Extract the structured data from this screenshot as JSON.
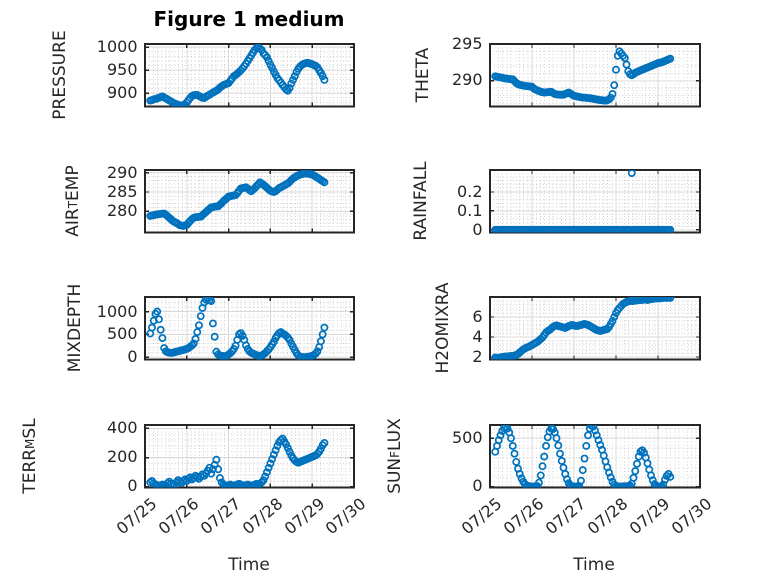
{
  "figure": {
    "title": "Figure 1 medium",
    "xlabel": "Time",
    "background_color": "#ffffff",
    "marker_color": "#0072BD",
    "axes_edge_color": "#262626",
    "grid_major_color": "#d9d9d9",
    "grid_minor_color": "#cfcfcf",
    "xlim": [
      25,
      30
    ],
    "xticks": [
      25,
      26,
      27,
      28,
      29,
      30
    ],
    "xticklabels": [
      "07/25",
      "07/26",
      "07/27",
      "07/28",
      "07/29",
      "07/30"
    ]
  },
  "chart_data": [
    {
      "id": "pressure",
      "name": "PRESSURE",
      "type": "scatter",
      "row": 0,
      "col": 0,
      "ylabel_parts": [
        {
          "t": "PRESSURE"
        }
      ],
      "yticks": [
        900,
        950,
        1000
      ],
      "yticklabels": [
        "900",
        "950",
        "1000"
      ],
      "ylim": [
        871,
        1007
      ],
      "yminor": 10,
      "x0": 25.125,
      "dx": 0.041666667,
      "values": [
        884,
        885,
        886.5,
        887.5,
        888.7,
        890,
        891.5,
        893,
        890.5,
        888.5,
        886.5,
        884,
        882,
        879.5,
        877.5,
        876,
        874.5,
        873.5,
        873.5,
        874,
        875.5,
        880,
        885,
        890,
        894,
        895.5,
        896,
        896,
        894,
        892,
        890,
        889.5,
        892,
        894.5,
        896.5,
        899,
        901,
        903.5,
        905.5,
        908.5,
        912,
        915,
        917.5,
        919,
        920.5,
        922,
        927,
        932,
        937,
        939.5,
        942.5,
        946,
        949.5,
        954,
        959,
        964,
        970,
        976,
        982,
        988,
        994,
        998,
        1000,
        997,
        994,
        987,
        983,
        978,
        970,
        962,
        955,
        947,
        940,
        933,
        928,
        923,
        918,
        913,
        908.5,
        905.5,
        911,
        921,
        929,
        937,
        946,
        953,
        958,
        961,
        963.5,
        965,
        966,
        965.5,
        964,
        963,
        961,
        959.5,
        956,
        950,
        944,
        937,
        929
      ]
    },
    {
      "id": "theta",
      "name": "THETA",
      "type": "scatter",
      "row": 0,
      "col": 1,
      "ylabel_parts": [
        {
          "t": "THETA"
        }
      ],
      "yticks": [
        290,
        295
      ],
      "yticklabels": [
        "290",
        "295"
      ],
      "ylim": [
        286.5,
        295
      ],
      "yminor": 1,
      "x0": 25.125,
      "dx": 0.041666667,
      "values": [
        290.6,
        290.55,
        290.5,
        290.45,
        290.4,
        290.35,
        290.3,
        290.28,
        290.25,
        290.22,
        290.2,
        289.95,
        289.7,
        289.55,
        289.45,
        289.4,
        289.35,
        289.3,
        289.28,
        289.25,
        289.22,
        289.2,
        288.95,
        288.8,
        288.7,
        288.6,
        288.5,
        288.45,
        288.4,
        288.42,
        288.45,
        288.48,
        288.5,
        288.35,
        288.2,
        288.15,
        288.12,
        288.1,
        288.1,
        288.1,
        288.2,
        288.3,
        288.4,
        288.25,
        288.1,
        287.95,
        287.9,
        287.85,
        287.8,
        287.75,
        287.72,
        287.7,
        287.68,
        287.65,
        287.62,
        287.6,
        287.55,
        287.5,
        287.45,
        287.4,
        287.38,
        287.35,
        287.32,
        287.3,
        287.35,
        287.45,
        287.7,
        288.2,
        289.4,
        291.5,
        293.4,
        294,
        293.7,
        293.4,
        293.1,
        292.2,
        291.3,
        290.9,
        290.75,
        290.9,
        291.1,
        291.2,
        291.3,
        291.4,
        291.5,
        291.6,
        291.7,
        291.8,
        291.9,
        292,
        292.1,
        292.2,
        292.3,
        292.4,
        292.45,
        292.5,
        292.6,
        292.7,
        292.8,
        292.9,
        293
      ]
    },
    {
      "id": "air-temp",
      "name": "AIR_TEMP",
      "type": "scatter",
      "row": 1,
      "col": 0,
      "ylabel_parts": [
        {
          "t": "AIR"
        },
        {
          "t": "T",
          "sub": true
        },
        {
          "t": "EMP"
        }
      ],
      "yticks": [
        280,
        285,
        290
      ],
      "yticklabels": [
        "280",
        "285",
        "290"
      ],
      "ylim": [
        274.5,
        290.7
      ],
      "yminor": 1,
      "x0": 25.125,
      "dx": 0.041666667,
      "values": [
        278.8,
        278.9,
        279,
        279.1,
        279.2,
        279.25,
        279.3,
        279.38,
        279.4,
        279.1,
        278.7,
        278.3,
        277.9,
        277.5,
        277.2,
        277,
        276.7,
        276.4,
        276.3,
        276.2,
        276.35,
        276.5,
        277,
        277.5,
        278,
        278.3,
        278.45,
        278.5,
        278.55,
        278.6,
        279,
        279.4,
        279.8,
        280.2,
        280.6,
        281,
        281.1,
        281.2,
        281.25,
        281.3,
        281.7,
        282.1,
        282.6,
        283,
        283.4,
        283.8,
        283.9,
        284,
        284.1,
        284.2,
        284.7,
        285.3,
        285.9,
        286,
        286.1,
        286.2,
        285.9,
        285.5,
        285.2,
        285.6,
        286,
        286.5,
        287,
        287.5,
        287.2,
        286.9,
        286.5,
        286.1,
        285.7,
        285.3,
        285.15,
        285,
        285.2,
        285.6,
        286,
        286.2,
        286.5,
        286.7,
        287,
        287.2,
        287.6,
        288.1,
        288.5,
        288.8,
        289.1,
        289.3,
        289.5,
        289.6,
        289.7,
        289.8,
        289.75,
        289.7,
        289.6,
        289.5,
        289.3,
        289,
        288.7,
        288.4,
        288.1,
        287.8,
        287.5
      ]
    },
    {
      "id": "rainfall",
      "name": "RAINFALL",
      "type": "scatter",
      "row": 1,
      "col": 1,
      "ylabel_parts": [
        {
          "t": "RAINFALL"
        }
      ],
      "yticks": [
        0,
        0.1,
        0.2
      ],
      "yticklabels": [
        "0",
        "0.1",
        "0.2"
      ],
      "ylim": [
        -0.014,
        0.316
      ],
      "yminor": 0.02,
      "x0": 25.125,
      "dx": 0.041666667,
      "values": [
        0,
        0,
        0,
        0,
        0,
        0,
        0,
        0,
        0,
        0,
        0,
        0,
        0,
        0,
        0,
        0,
        0,
        0,
        0,
        0,
        0,
        0,
        0,
        0,
        0,
        0,
        0,
        0,
        0,
        0,
        0,
        0,
        0,
        0,
        0,
        0,
        0,
        0,
        0,
        0,
        0,
        0,
        0,
        0,
        0,
        0,
        0,
        0,
        0,
        0,
        0,
        0,
        0,
        0,
        0,
        0,
        0,
        0,
        0,
        0,
        0,
        0,
        0,
        0,
        0,
        0,
        0,
        0,
        0,
        0,
        0,
        0,
        0,
        0,
        0,
        0,
        0,
        0,
        0.3,
        0,
        0,
        0,
        0,
        0,
        0,
        0,
        0,
        0,
        0,
        0,
        0,
        0,
        0,
        0,
        0,
        0,
        0,
        0,
        0,
        0,
        0
      ]
    },
    {
      "id": "mixdepth",
      "name": "MIXDEPTH",
      "type": "scatter",
      "row": 2,
      "col": 0,
      "ylabel_parts": [
        {
          "t": "MIXDEPTH"
        }
      ],
      "yticks": [
        0,
        500,
        1000
      ],
      "yticklabels": [
        "0",
        "500",
        "1000"
      ],
      "ylim": [
        -50,
        1320
      ],
      "yminor": 100,
      "x0": 25.125,
      "dx": 0.041666667,
      "values": [
        520,
        650,
        800,
        950,
        1000,
        830,
        600,
        420,
        200,
        130,
        110,
        100,
        95,
        100,
        110,
        120,
        130,
        140,
        150,
        160,
        170,
        185,
        200,
        230,
        260,
        300,
        400,
        550,
        700,
        900,
        1080,
        1200,
        1260,
        1280,
        1250,
        1230,
        740,
        450,
        120,
        60,
        40,
        30,
        25,
        20,
        30,
        60,
        90,
        130,
        180,
        250,
        380,
        500,
        530,
        470,
        380,
        260,
        180,
        130,
        100,
        80,
        60,
        45,
        35,
        30,
        40,
        60,
        90,
        130,
        170,
        220,
        280,
        340,
        420,
        480,
        530,
        550,
        520,
        500,
        470,
        430,
        380,
        300,
        230,
        160,
        90,
        40,
        15,
        5,
        0,
        0,
        5,
        10,
        20,
        30,
        50,
        80,
        130,
        220,
        350,
        500,
        650
      ]
    },
    {
      "id": "h2omixra",
      "name": "H2OMIXRA",
      "type": "scatter",
      "row": 2,
      "col": 1,
      "ylabel_parts": [
        {
          "t": "H2OMIXRA"
        }
      ],
      "yticks": [
        2,
        4,
        6
      ],
      "yticklabels": [
        "2",
        "4",
        "6"
      ],
      "ylim": [
        1.75,
        8.0
      ],
      "yminor": 0.4,
      "x0": 25.125,
      "dx": 0.041666667,
      "values": [
        1.95,
        1.9,
        1.92,
        1.95,
        2,
        2.02,
        2.05,
        2.05,
        2.08,
        2.1,
        2.1,
        2.15,
        2.2,
        2.3,
        2.45,
        2.6,
        2.75,
        2.85,
        2.95,
        3,
        3.1,
        3.2,
        3.3,
        3.4,
        3.5,
        3.65,
        3.8,
        3.95,
        4.2,
        4.45,
        4.6,
        4.7,
        4.85,
        5,
        5.1,
        5.15,
        5.1,
        5.05,
        5,
        4.95,
        4.9,
        5,
        5.1,
        5.15,
        5.2,
        5.15,
        5.1,
        5.1,
        5.15,
        5.2,
        5.25,
        5.3,
        5.25,
        5.2,
        5.1,
        5,
        4.9,
        4.8,
        4.7,
        4.65,
        4.6,
        4.65,
        4.7,
        4.75,
        4.8,
        5,
        5.3,
        5.6,
        6,
        6.4,
        6.7,
        6.9,
        7.1,
        7.3,
        7.4,
        7.5,
        7.55,
        7.6,
        7.6,
        7.6,
        7.65,
        7.65,
        7.7,
        7.7,
        7.7,
        7.75,
        7.75,
        7.7,
        7.75,
        7.8,
        7.8,
        7.85,
        7.85,
        7.9,
        7.85,
        7.9,
        7.9,
        7.95,
        7.9,
        7.95,
        7.9
      ]
    },
    {
      "id": "terr-msl",
      "name": "TERR_MSL",
      "type": "scatter",
      "row": 3,
      "col": 0,
      "ylabel_parts": [
        {
          "t": "TERR"
        },
        {
          "t": "M",
          "sub": true
        },
        {
          "t": "SL"
        }
      ],
      "yticks": [
        0,
        200,
        400
      ],
      "yticklabels": [
        "0",
        "200",
        "400"
      ],
      "ylim": [
        -5,
        423
      ],
      "yminor": 40,
      "x0": 25.125,
      "dx": 0.041666667,
      "values": [
        30,
        40,
        25,
        15,
        10,
        5,
        10,
        15,
        5,
        10,
        25,
        35,
        20,
        10,
        15,
        30,
        45,
        35,
        25,
        40,
        50,
        40,
        55,
        65,
        50,
        60,
        75,
        65,
        55,
        70,
        85,
        75,
        90,
        110,
        130,
        90,
        120,
        150,
        185,
        120,
        60,
        30,
        15,
        10,
        5,
        10,
        15,
        10,
        5,
        10,
        15,
        20,
        15,
        10,
        5,
        10,
        15,
        10,
        5,
        10,
        15,
        20,
        15,
        20,
        30,
        45,
        70,
        100,
        130,
        160,
        190,
        220,
        250,
        280,
        305,
        320,
        330,
        310,
        290,
        265,
        240,
        215,
        195,
        180,
        170,
        165,
        170,
        175,
        180,
        185,
        190,
        195,
        200,
        205,
        210,
        215,
        225,
        240,
        260,
        285,
        300
      ]
    },
    {
      "id": "sun-flux",
      "name": "SUN_FLUX",
      "type": "scatter",
      "row": 3,
      "col": 1,
      "ylabel_parts": [
        {
          "t": "SUN"
        },
        {
          "t": "F",
          "sub": true
        },
        {
          "t": "LUX"
        }
      ],
      "yticks": [
        0,
        500
      ],
      "yticklabels": [
        "0",
        "500"
      ],
      "ylim": [
        -10,
        637
      ],
      "yminor": 100,
      "x0": 25.125,
      "dx": 0.041666667,
      "values": [
        360,
        420,
        480,
        530,
        575,
        605,
        617,
        600,
        560,
        500,
        420,
        340,
        255,
        185,
        130,
        85,
        50,
        25,
        10,
        5,
        2,
        0,
        0,
        2,
        5,
        40,
        115,
        210,
        310,
        420,
        510,
        570,
        600,
        595,
        560,
        500,
        425,
        340,
        265,
        195,
        130,
        75,
        35,
        10,
        3,
        0,
        0,
        2,
        5,
        60,
        170,
        290,
        420,
        530,
        600,
        630,
        620,
        580,
        530,
        480,
        430,
        380,
        320,
        260,
        200,
        145,
        95,
        50,
        20,
        5,
        2,
        0,
        0,
        2,
        3,
        2,
        5,
        10,
        30,
        90,
        160,
        235,
        310,
        360,
        375,
        350,
        300,
        240,
        175,
        115,
        65,
        25,
        8,
        2,
        0,
        2,
        20,
        70,
        110,
        130,
        100
      ]
    }
  ]
}
